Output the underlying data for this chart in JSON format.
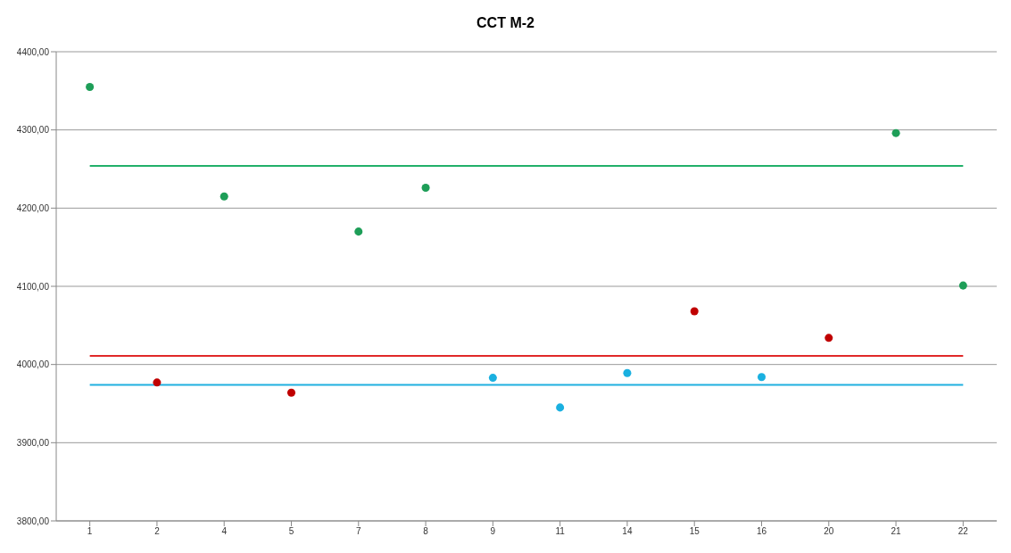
{
  "chart_data": {
    "type": "scatter",
    "title": "CCT M-2",
    "categories": [
      "1",
      "2",
      "4",
      "5",
      "7",
      "8",
      "9",
      "11",
      "14",
      "15",
      "16",
      "20",
      "21",
      "22"
    ],
    "series": [
      {
        "color": "#1e9e58",
        "values": [
          4355,
          null,
          4215,
          null,
          4170,
          4226,
          null,
          null,
          null,
          null,
          null,
          null,
          4296,
          4101
        ]
      },
      {
        "color": "#c00000",
        "values": [
          null,
          3977,
          null,
          3964,
          null,
          null,
          null,
          null,
          null,
          4068,
          null,
          4034,
          null,
          null
        ]
      },
      {
        "color": "#1ab0e0",
        "values": [
          null,
          null,
          null,
          null,
          null,
          null,
          3983,
          3945,
          3989,
          null,
          3984,
          null,
          null,
          null
        ]
      },
      {
        "type": "line",
        "color": "#22b06a",
        "marker": "none",
        "values": [
          4254,
          4254,
          4254,
          4254,
          4254,
          4254,
          4254,
          4254,
          4254,
          4254,
          4254,
          4254,
          4254,
          4254
        ]
      },
      {
        "type": "line",
        "color": "#e02828",
        "marker": "none",
        "values": [
          4011,
          4011,
          4011,
          4011,
          4011,
          4011,
          4011,
          4011,
          4011,
          4011,
          4011,
          4011,
          4011,
          4011
        ]
      },
      {
        "type": "line",
        "color": "#20b0e0",
        "marker": "none",
        "values": [
          3974,
          3974,
          3974,
          3974,
          3974,
          3974,
          3974,
          3974,
          3974,
          3974,
          3974,
          3974,
          3974,
          3974
        ]
      }
    ],
    "ylim": [
      3800,
      4400
    ],
    "yticks": [
      {
        "value": 3800,
        "label": "3800,00"
      },
      {
        "value": 3900,
        "label": "3900,00"
      },
      {
        "value": 4000,
        "label": "4000,00"
      },
      {
        "value": 4100,
        "label": "4100,00"
      },
      {
        "value": 4200,
        "label": "4200,00"
      },
      {
        "value": 4300,
        "label": "4300,00"
      },
      {
        "value": 4400,
        "label": "4400,00"
      }
    ],
    "grid": "y",
    "marker": "circle",
    "line_style": "solid"
  }
}
